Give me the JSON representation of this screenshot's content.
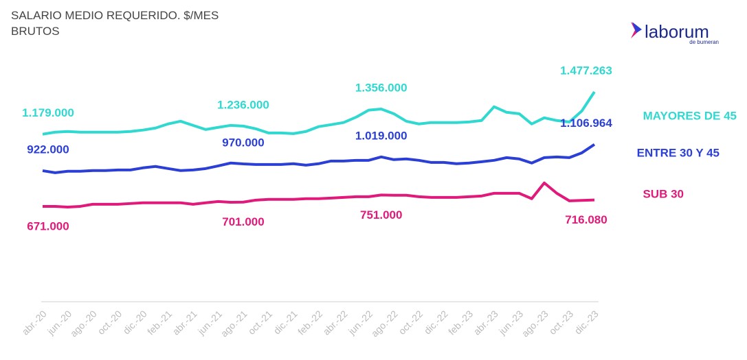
{
  "chart_data": {
    "type": "line",
    "title": "SALARIO MEDIO REQUERIDO. $/MES",
    "subtitle": "BRUTOS",
    "logo": {
      "name": "laborum",
      "tagline": "de bumeran"
    },
    "categories": [
      "abr.-20",
      null,
      "jun.-20",
      null,
      "ago.-20",
      null,
      "oct.-20",
      null,
      "dic.-20",
      null,
      "feb.-21",
      null,
      "abr.-21",
      null,
      "jun.-21",
      null,
      "ago.-21",
      null,
      "oct.-21",
      null,
      "dic.-21",
      null,
      "feb.-22",
      null,
      "abr.-22",
      null,
      "jun.-22",
      null,
      "ago.-22",
      null,
      "oct.-22",
      null,
      "dic.-22",
      null,
      "feb.-23",
      null,
      "abr.-23",
      null,
      "jun.-23",
      null,
      "ago.-23",
      null,
      "oct.-23",
      null,
      "dic.-23"
    ],
    "ylim": [
      0,
      1800000
    ],
    "series": [
      {
        "name": "MAYORES DE 45",
        "color": "#2fd9d0",
        "label_side": "above",
        "values": [
          1179000,
          1193000,
          1198000,
          1193000,
          1193000,
          1193000,
          1193000,
          1198000,
          1208000,
          1222000,
          1251000,
          1270000,
          1241000,
          1212000,
          1227000,
          1241000,
          1236000,
          1217000,
          1188000,
          1188000,
          1183000,
          1198000,
          1232000,
          1246000,
          1261000,
          1299000,
          1348000,
          1356000,
          1323000,
          1270000,
          1251000,
          1261000,
          1261000,
          1261000,
          1265000,
          1275000,
          1372000,
          1333000,
          1323000,
          1251000,
          1294000,
          1275000,
          1265000,
          1343000,
          1477263
        ],
        "value_labels": [
          "1.179.000",
          null,
          null,
          null,
          null,
          null,
          null,
          null,
          null,
          null,
          null,
          null,
          null,
          null,
          null,
          null,
          "1.236.000",
          null,
          null,
          null,
          null,
          null,
          null,
          null,
          null,
          null,
          null,
          "1.356.000",
          null,
          null,
          null,
          null,
          null,
          null,
          null,
          null,
          null,
          null,
          null,
          null,
          null,
          null,
          null,
          null,
          "1.477.263"
        ]
      },
      {
        "name": "ENTRE 30 Y 45",
        "color": "#2b3fd6",
        "label_side": "above",
        "values": [
          922000,
          908000,
          918000,
          918000,
          923000,
          923000,
          927000,
          927000,
          942000,
          952000,
          937000,
          923000,
          927000,
          937000,
          956000,
          976000,
          970000,
          966000,
          966000,
          966000,
          971000,
          961000,
          971000,
          990000,
          990000,
          995000,
          995000,
          1019000,
          1000000,
          1005000,
          995000,
          980000,
          980000,
          971000,
          976000,
          985000,
          995000,
          1014000,
          1005000,
          976000,
          1014000,
          1019000,
          1014000,
          1048000,
          1106964
        ],
        "value_labels": [
          "922.000",
          null,
          null,
          null,
          null,
          null,
          null,
          null,
          null,
          null,
          null,
          null,
          null,
          null,
          null,
          null,
          "970.000",
          null,
          null,
          null,
          null,
          null,
          null,
          null,
          null,
          null,
          null,
          "1.019.000",
          null,
          null,
          null,
          null,
          null,
          null,
          null,
          null,
          null,
          null,
          null,
          null,
          null,
          null,
          null,
          null,
          "1.106.964"
        ]
      },
      {
        "name": "SUB 30",
        "color": "#e0197a",
        "label_side": "below",
        "values": [
          671000,
          671000,
          666000,
          671000,
          686000,
          686000,
          686000,
          691000,
          696000,
          696000,
          696000,
          696000,
          686000,
          696000,
          705000,
          700000,
          701000,
          715000,
          720000,
          720000,
          720000,
          725000,
          725000,
          729000,
          734000,
          739000,
          739000,
          751000,
          749000,
          749000,
          739000,
          734000,
          734000,
          734000,
          739000,
          744000,
          763000,
          763000,
          763000,
          725000,
          836000,
          763000,
          710000,
          713000,
          716080
        ],
        "value_labels": [
          "671.000",
          null,
          null,
          null,
          null,
          null,
          null,
          null,
          null,
          null,
          null,
          null,
          null,
          null,
          null,
          null,
          "701.000",
          null,
          null,
          null,
          null,
          null,
          null,
          null,
          null,
          null,
          null,
          "751.000",
          null,
          null,
          null,
          null,
          null,
          null,
          null,
          null,
          null,
          null,
          null,
          null,
          null,
          null,
          null,
          null,
          "716.080"
        ]
      }
    ]
  }
}
